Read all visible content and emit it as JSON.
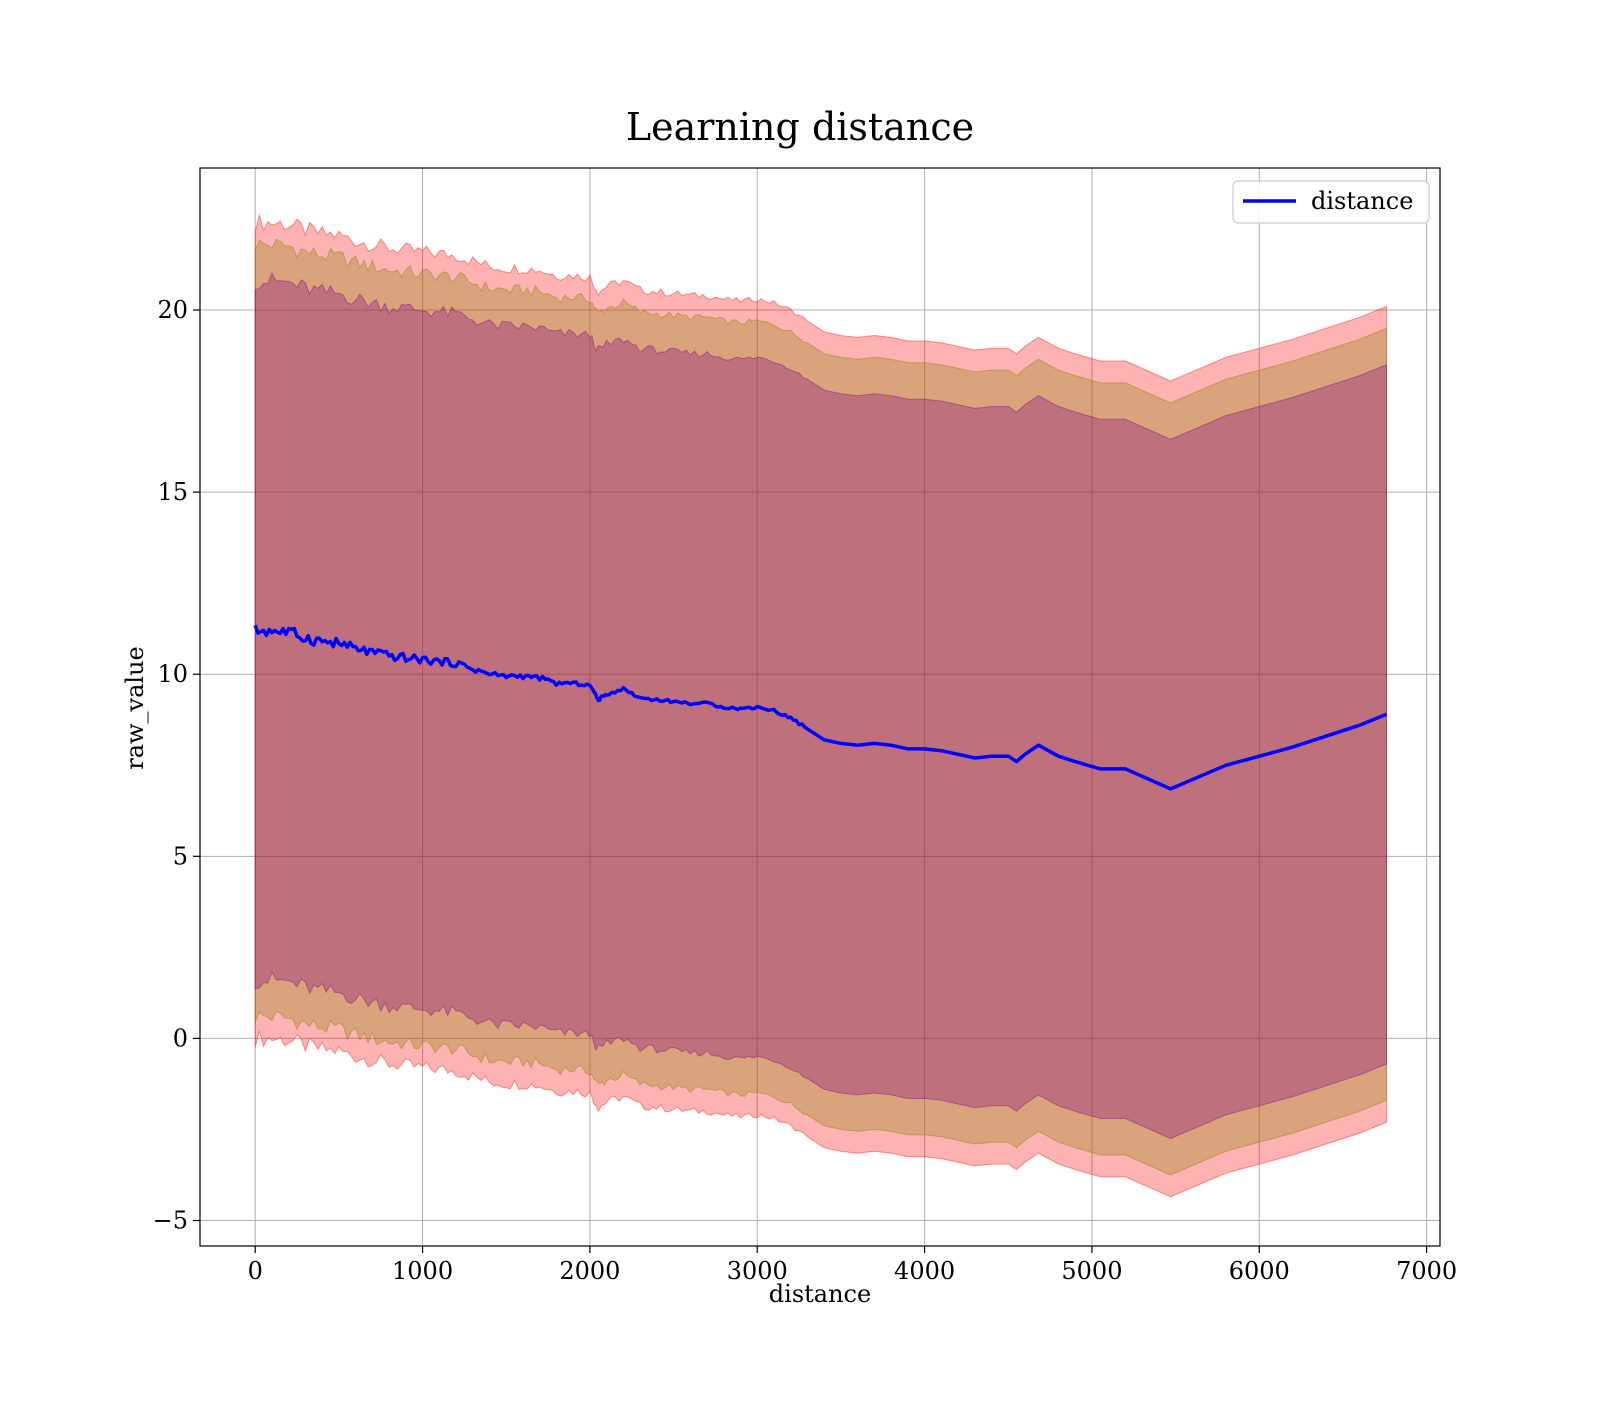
{
  "chart_data": {
    "type": "area",
    "title": "Learning distance",
    "xlabel": "distance",
    "ylabel": "raw_value",
    "xlim": [
      -330,
      7080
    ],
    "ylim": [
      -5.7,
      23.9
    ],
    "x_ticks": [
      0,
      1000,
      2000,
      3000,
      4000,
      5000,
      6000,
      7000
    ],
    "y_ticks": [
      -5,
      0,
      5,
      10,
      15,
      20
    ],
    "x_tick_labels": [
      "0",
      "1000",
      "2000",
      "3000",
      "4000",
      "5000",
      "6000",
      "7000"
    ],
    "y_tick_labels": [
      "−5",
      "0",
      "5",
      "10",
      "15",
      "20"
    ],
    "grid": true,
    "legend": {
      "position": "top-right",
      "entries": [
        "distance"
      ]
    },
    "x": [
      0,
      100,
      200,
      300,
      400,
      500,
      600,
      700,
      800,
      900,
      1000,
      1100,
      1200,
      1300,
      1400,
      1500,
      1600,
      1700,
      1800,
      1900,
      2000,
      2050,
      2100,
      2200,
      2300,
      2400,
      2500,
      2600,
      2700,
      2800,
      2900,
      3000,
      3100,
      3200,
      3300,
      3400,
      3500,
      3600,
      3700,
      3800,
      3900,
      4000,
      4100,
      4200,
      4300,
      4400,
      4500,
      4550,
      4600,
      4680,
      4800,
      4900,
      5050,
      5200,
      5470,
      5800,
      6200,
      6600,
      6760
    ],
    "series": [
      {
        "name": "distance",
        "color": "#0000ff",
        "values": [
          11.2,
          11.2,
          11.15,
          11.0,
          10.9,
          10.85,
          10.7,
          10.6,
          10.5,
          10.45,
          10.4,
          10.35,
          10.3,
          10.15,
          10.0,
          9.95,
          9.95,
          9.9,
          9.75,
          9.75,
          9.7,
          9.3,
          9.45,
          9.6,
          9.35,
          9.3,
          9.25,
          9.2,
          9.2,
          9.1,
          9.05,
          9.1,
          9.0,
          8.8,
          8.5,
          8.2,
          8.1,
          8.05,
          8.1,
          8.05,
          7.95,
          7.95,
          7.9,
          7.8,
          7.7,
          7.75,
          7.75,
          7.6,
          7.8,
          8.05,
          7.75,
          7.6,
          7.4,
          7.4,
          6.85,
          7.5,
          8.0,
          8.6,
          8.9
        ]
      }
    ],
    "bands": [
      {
        "color": "#ff0000",
        "opacity": 0.3,
        "offset_above": 11.2,
        "offset_below": 11.2
      },
      {
        "color": "#808000",
        "opacity": 0.3,
        "offset_above": 10.6,
        "offset_below": 10.6
      },
      {
        "color": "#800080",
        "opacity": 0.3,
        "offset_above": 9.6,
        "offset_below": 9.6
      }
    ]
  }
}
